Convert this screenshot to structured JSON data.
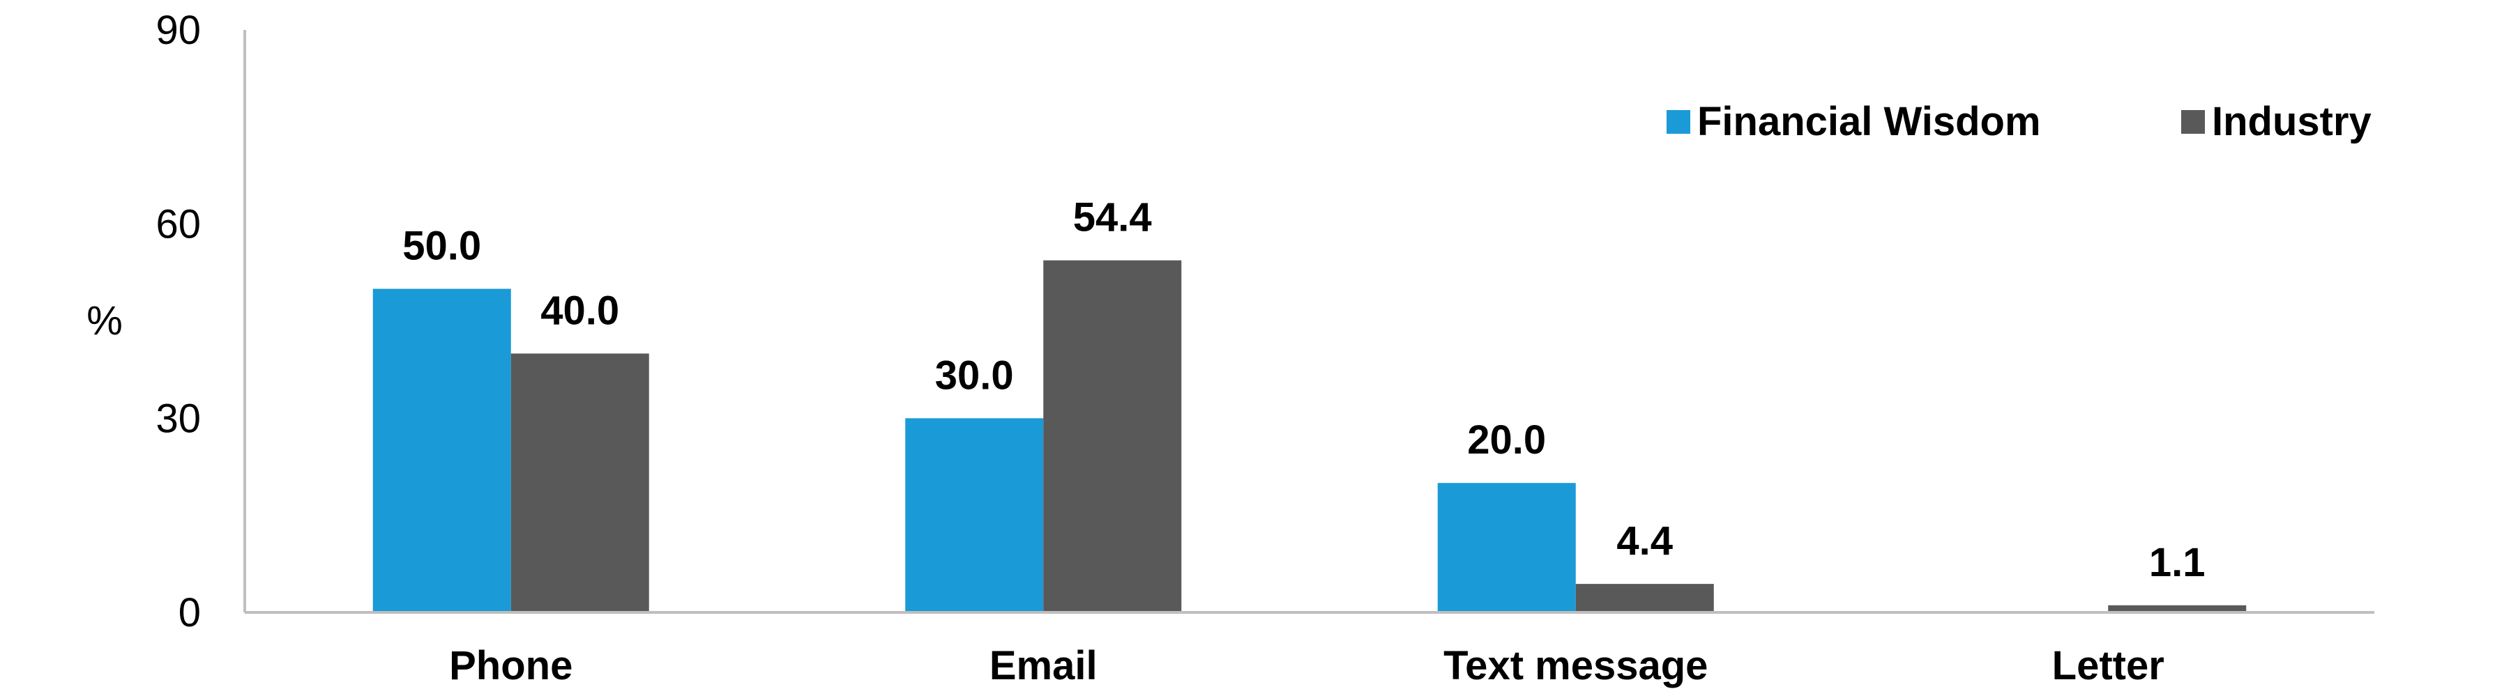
{
  "chart_data": {
    "type": "bar",
    "title": "",
    "xlabel": "",
    "ylabel": "%",
    "ylim": [
      0,
      90
    ],
    "yticks": [
      "0",
      "30",
      "60",
      "90"
    ],
    "grid": false,
    "legend_position": "top-right",
    "categories": [
      "Phone",
      "Email",
      "Text message",
      "Letter"
    ],
    "series": [
      {
        "name": "Financial Wisdom",
        "color": "#1a9ad6",
        "values": [
          50.0,
          30.0,
          20.0,
          null
        ],
        "labels": [
          "50.0",
          "30.0",
          "20.0",
          ""
        ]
      },
      {
        "name": "Industry",
        "color": "#595959",
        "values": [
          40.0,
          54.4,
          4.4,
          1.1
        ],
        "labels": [
          "40.0",
          "54.4",
          "4.4",
          "1.1"
        ]
      }
    ]
  }
}
